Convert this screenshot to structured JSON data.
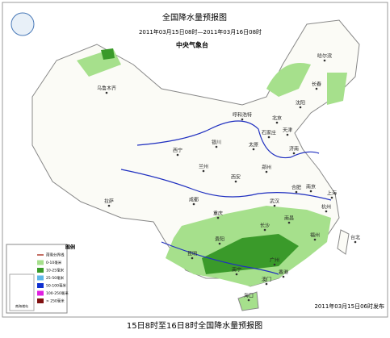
{
  "header": {
    "title": "全国降水量预报图",
    "subtitle": "2011年03月15日08时—2011年03月16日08时",
    "agency": "中央气象台"
  },
  "cities": [
    "乌鲁木齐",
    "哈尔滨",
    "长春",
    "沈阳",
    "呼和浩特",
    "北京",
    "天津",
    "石家庄",
    "太原",
    "济南",
    "银川",
    "西宁",
    "兰州",
    "郑州",
    "西安",
    "合肥",
    "南京",
    "上海",
    "武汉",
    "杭州",
    "拉萨",
    "成都",
    "重庆",
    "长沙",
    "南昌",
    "福州",
    "贵阳",
    "昆明",
    "广州",
    "南宁",
    "香港",
    "澳门",
    "台北",
    "海口"
  ],
  "legend": {
    "title": "图例",
    "items": [
      {
        "label": "雨雪分界线",
        "color": "#b04030"
      },
      {
        "label": "0-10毫米",
        "color": "#a6e08c"
      },
      {
        "label": "10-25毫米",
        "color": "#3a9a2a"
      },
      {
        "label": "25-50毫米",
        "color": "#5fb8e8"
      },
      {
        "label": "50-100毫米",
        "color": "#1030d0"
      },
      {
        "label": "100-250毫米",
        "color": "#e020e0"
      },
      {
        "label": "> 250毫米",
        "color": "#801010"
      }
    ],
    "inset": "南海诸岛"
  },
  "footer": {
    "issued": "2011年03月15日06时发布",
    "caption": "15日8时至16日8时全国降水量预报图"
  }
}
